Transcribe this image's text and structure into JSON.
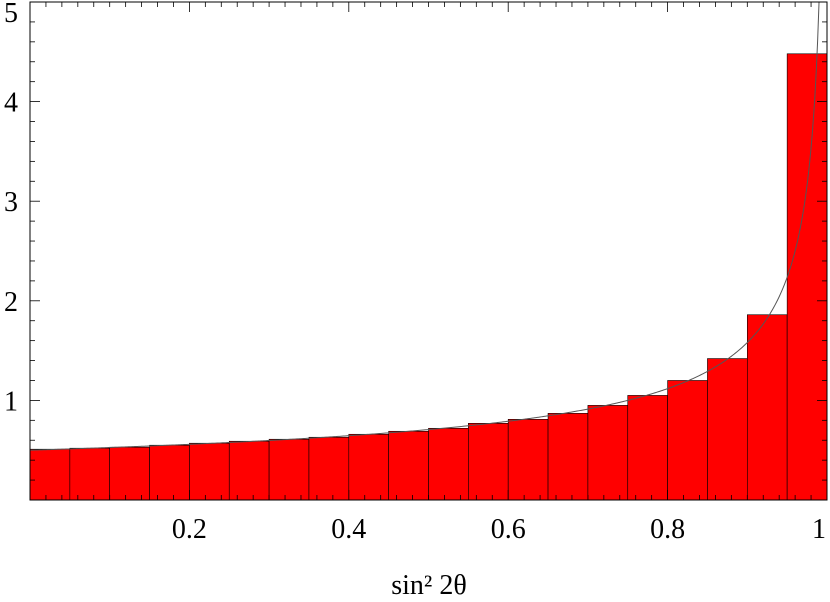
{
  "chart_data": {
    "type": "bar",
    "title": "",
    "xlabel": "sin² 2θ",
    "ylabel": "",
    "xlim": [
      0,
      1
    ],
    "ylim": [
      0,
      5
    ],
    "bin_width": 0.05,
    "bin_starts": [
      0,
      0.05,
      0.1,
      0.15,
      0.2,
      0.25,
      0.3,
      0.35,
      0.4,
      0.45,
      0.5,
      0.55,
      0.6,
      0.65,
      0.7,
      0.75,
      0.8,
      0.85,
      0.9,
      0.95
    ],
    "values": [
      0.51,
      0.52,
      0.53,
      0.55,
      0.57,
      0.59,
      0.61,
      0.63,
      0.66,
      0.69,
      0.72,
      0.77,
      0.81,
      0.87,
      0.95,
      1.05,
      1.2,
      1.42,
      1.86,
      4.48
    ],
    "x_ticks": [
      0.2,
      0.4,
      0.6,
      0.8,
      1
    ],
    "x_tick_labels": [
      "0.2",
      "0.4",
      "0.6",
      "0.8",
      "1"
    ],
    "y_ticks": [
      1,
      2,
      3,
      4,
      5
    ],
    "y_tick_labels": [
      "1",
      "2",
      "3",
      "4",
      "5"
    ],
    "curve": "1/(2*sqrt(1-x))",
    "colors": {
      "bars": "#ff0000",
      "bar_edge": "#000000",
      "curve": "#555555",
      "axes": "#000000"
    },
    "grid": false,
    "legend": "none"
  }
}
